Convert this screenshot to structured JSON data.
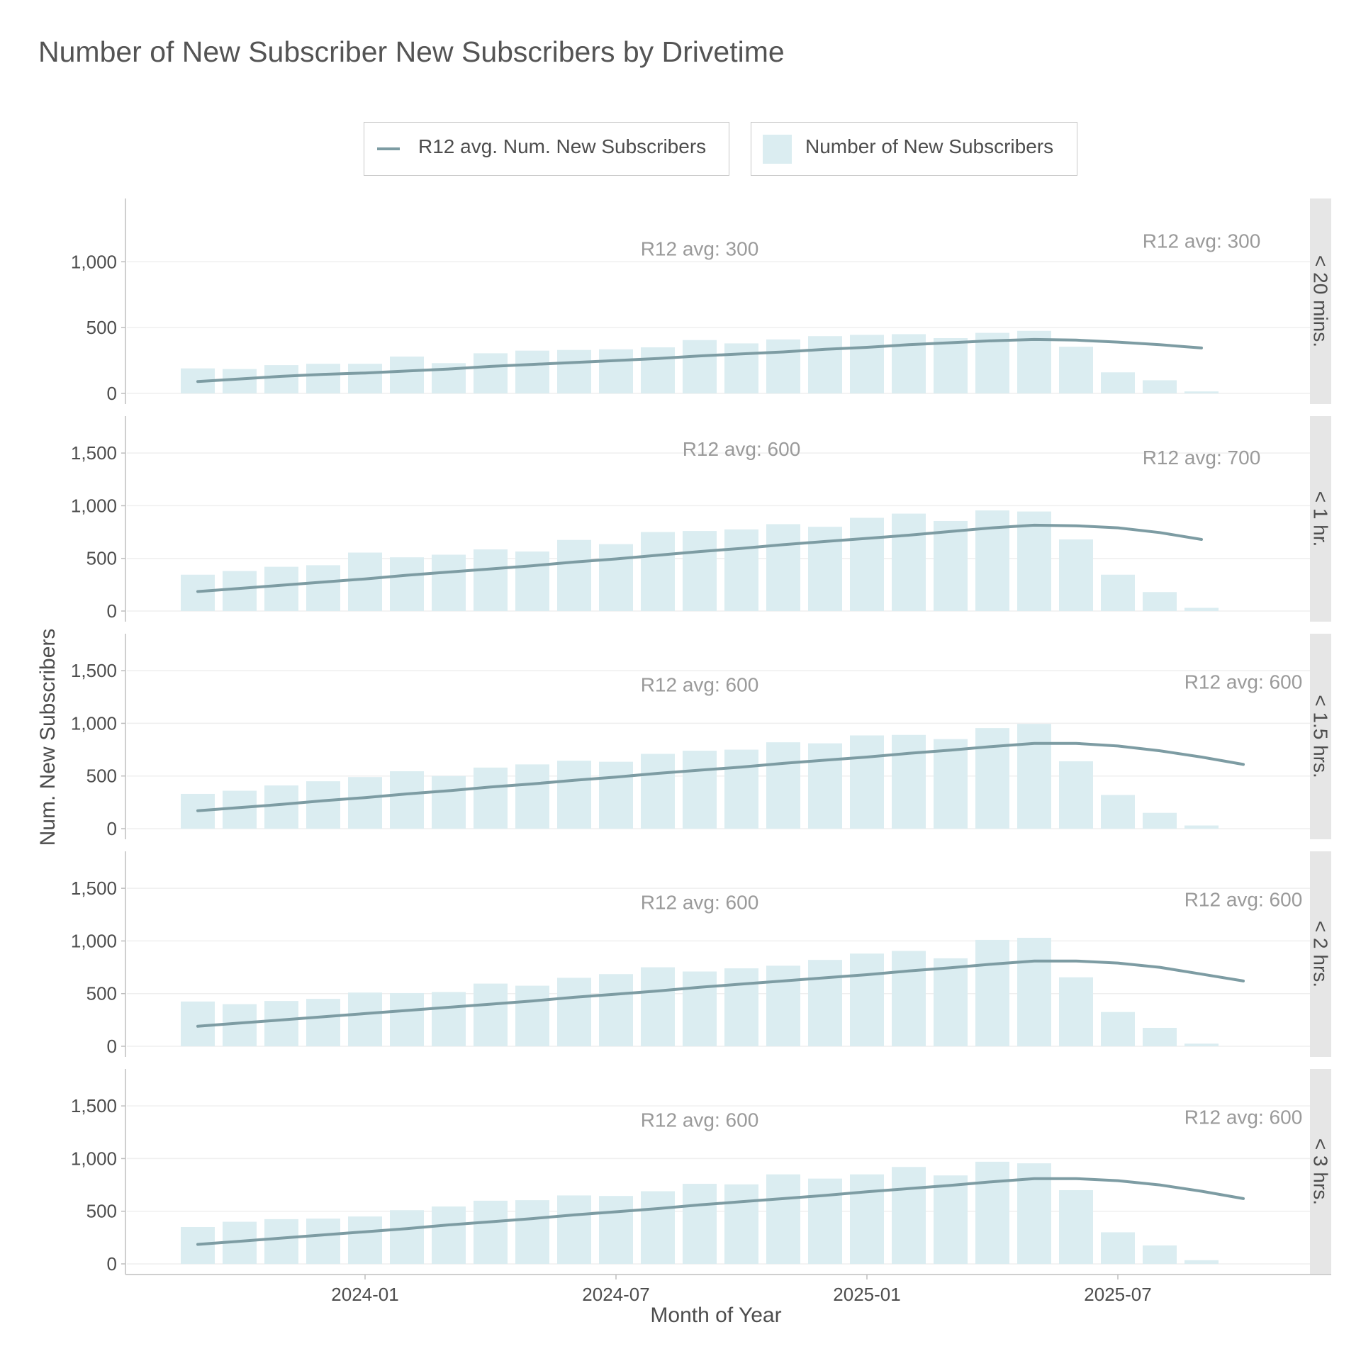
{
  "chart_data": {
    "type": "bar",
    "title": "Number of New Subscriber New Subscribers by Drivetime",
    "xlabel": "Month of Year",
    "ylabel": "Num. New Subscribers",
    "grid": true,
    "legend_placement": "top",
    "legend": [
      {
        "label": "R12 avg. Num. New Subscribers",
        "kind": "line",
        "color": "#7d9ca3"
      },
      {
        "label": "Number of New Subscribers",
        "kind": "bar",
        "color": "#dbedf1"
      }
    ],
    "colors": {
      "bar": "#dbedf1",
      "line": "#7d9ca3",
      "annotation": "#9a9a9a",
      "strip": "#e6e6e6"
    },
    "x_start_month": "2023-09",
    "bar_months": [
      "2023-09",
      "2023-10",
      "2023-11",
      "2023-12",
      "2024-01",
      "2024-02",
      "2024-03",
      "2024-04",
      "2024-05",
      "2024-06",
      "2024-07",
      "2024-08",
      "2024-09",
      "2024-10",
      "2024-11",
      "2024-12",
      "2025-01",
      "2025-02",
      "2025-03",
      "2025-04",
      "2025-05",
      "2025-06",
      "2025-07",
      "2025-08",
      "2025-09"
    ],
    "x_ticks": [
      "2024-01",
      "2024-07",
      "2025-01",
      "2025-07"
    ],
    "panels": [
      {
        "strip_label": "< 20 mins.",
        "ylim": [
          0,
          1400
        ],
        "yticks": [
          0,
          500,
          1000
        ],
        "ytick_labels": [
          "0",
          "500",
          "1,000"
        ],
        "values": [
          190,
          185,
          215,
          225,
          225,
          280,
          230,
          305,
          325,
          330,
          335,
          350,
          405,
          380,
          410,
          435,
          445,
          450,
          420,
          460,
          475,
          355,
          160,
          100,
          15
        ],
        "r12_line": {
          "x": [
            "2023-09",
            "2023-10",
            "2023-11",
            "2023-12",
            "2024-01",
            "2024-02",
            "2024-03",
            "2024-04",
            "2024-05",
            "2024-06",
            "2024-07",
            "2024-08",
            "2024-09",
            "2024-10",
            "2024-11",
            "2024-12",
            "2025-01",
            "2025-02",
            "2025-03",
            "2025-04",
            "2025-05",
            "2025-06",
            "2025-07",
            "2025-08",
            "2025-09"
          ],
          "y": [
            90,
            110,
            130,
            145,
            155,
            170,
            185,
            205,
            220,
            235,
            250,
            265,
            285,
            300,
            315,
            335,
            350,
            370,
            385,
            400,
            410,
            405,
            390,
            370,
            345
          ]
        },
        "annotations": [
          {
            "text": "R12 avg: 300",
            "x": "2024-09",
            "y": 1100
          },
          {
            "text": "R12 avg: 300",
            "x": "2025-09",
            "y": 1160
          }
        ]
      },
      {
        "strip_label": "< 1 hr.",
        "ylim": [
          0,
          1750
        ],
        "yticks": [
          0,
          500,
          1000,
          1500
        ],
        "ytick_labels": [
          "0",
          "500",
          "1,000",
          "1,500"
        ],
        "values": [
          345,
          380,
          420,
          435,
          555,
          510,
          535,
          585,
          565,
          675,
          635,
          750,
          760,
          775,
          825,
          800,
          885,
          925,
          855,
          955,
          945,
          680,
          345,
          180,
          30
        ],
        "r12_line": {
          "x": [
            "2023-09",
            "2023-10",
            "2023-11",
            "2023-12",
            "2024-01",
            "2024-02",
            "2024-03",
            "2024-04",
            "2024-05",
            "2024-06",
            "2024-07",
            "2024-08",
            "2024-09",
            "2024-10",
            "2024-11",
            "2024-12",
            "2025-01",
            "2025-02",
            "2025-03",
            "2025-04",
            "2025-05",
            "2025-06",
            "2025-07",
            "2025-08",
            "2025-09"
          ],
          "y": [
            185,
            215,
            245,
            275,
            305,
            340,
            370,
            400,
            430,
            465,
            495,
            530,
            565,
            595,
            630,
            660,
            690,
            720,
            755,
            790,
            815,
            810,
            790,
            745,
            680
          ]
        },
        "annotations": [
          {
            "text": "R12 avg: 600",
            "x": "2024-10",
            "y": 1540
          },
          {
            "text": "R12 avg: 700",
            "x": "2025-09",
            "y": 1460
          }
        ]
      },
      {
        "strip_label": "< 1.5 hrs.",
        "ylim": [
          0,
          1750
        ],
        "yticks": [
          0,
          500,
          1000,
          1500
        ],
        "ytick_labels": [
          "0",
          "500",
          "1,000",
          "1,500"
        ],
        "values": [
          330,
          360,
          410,
          450,
          490,
          545,
          500,
          580,
          610,
          645,
          635,
          710,
          740,
          750,
          820,
          810,
          885,
          890,
          850,
          955,
          995,
          640,
          320,
          150,
          30
        ],
        "r12_line": {
          "x": [
            "2023-09",
            "2023-10",
            "2023-11",
            "2023-12",
            "2024-01",
            "2024-02",
            "2024-03",
            "2024-04",
            "2024-05",
            "2024-06",
            "2024-07",
            "2024-08",
            "2024-09",
            "2024-10",
            "2024-11",
            "2024-12",
            "2025-01",
            "2025-02",
            "2025-03",
            "2025-04",
            "2025-05",
            "2025-06",
            "2025-07",
            "2025-08",
            "2025-09",
            "2025-10"
          ],
          "y": [
            170,
            200,
            230,
            265,
            295,
            330,
            360,
            395,
            425,
            460,
            490,
            525,
            555,
            585,
            620,
            650,
            680,
            715,
            745,
            780,
            810,
            810,
            785,
            740,
            680,
            610
          ]
        },
        "annotations": [
          {
            "text": "R12 avg: 600",
            "x": "2024-09",
            "y": 1370
          },
          {
            "text": "R12 avg: 600",
            "x": "2025-10",
            "y": 1395
          }
        ]
      },
      {
        "strip_label": "< 2 hrs.",
        "ylim": [
          0,
          1750
        ],
        "yticks": [
          0,
          500,
          1000,
          1500
        ],
        "ytick_labels": [
          "0",
          "500",
          "1,000",
          "1,500"
        ],
        "values": [
          425,
          400,
          430,
          450,
          510,
          505,
          515,
          595,
          575,
          650,
          685,
          750,
          710,
          740,
          765,
          820,
          880,
          905,
          835,
          1010,
          1030,
          655,
          325,
          175,
          25
        ],
        "r12_line": {
          "x": [
            "2023-09",
            "2023-10",
            "2023-11",
            "2023-12",
            "2024-01",
            "2024-02",
            "2024-03",
            "2024-04",
            "2024-05",
            "2024-06",
            "2024-07",
            "2024-08",
            "2024-09",
            "2024-10",
            "2024-11",
            "2024-12",
            "2025-01",
            "2025-02",
            "2025-03",
            "2025-04",
            "2025-05",
            "2025-06",
            "2025-07",
            "2025-08",
            "2025-09",
            "2025-10"
          ],
          "y": [
            190,
            220,
            250,
            280,
            310,
            340,
            370,
            400,
            430,
            465,
            495,
            525,
            560,
            590,
            620,
            650,
            680,
            715,
            745,
            780,
            810,
            810,
            790,
            750,
            685,
            620
          ]
        },
        "annotations": [
          {
            "text": "R12 avg: 600",
            "x": "2024-09",
            "y": 1370
          },
          {
            "text": "R12 avg: 600",
            "x": "2025-10",
            "y": 1395
          }
        ]
      },
      {
        "strip_label": "< 3 hrs.",
        "ylim": [
          0,
          1750
        ],
        "yticks": [
          0,
          500,
          1000,
          1500
        ],
        "ytick_labels": [
          "0",
          "500",
          "1,000",
          "1,500"
        ],
        "values": [
          350,
          400,
          425,
          430,
          450,
          510,
          545,
          600,
          605,
          650,
          645,
          690,
          760,
          755,
          850,
          810,
          850,
          920,
          840,
          970,
          955,
          700,
          300,
          175,
          35
        ],
        "r12_line": {
          "x": [
            "2023-09",
            "2023-10",
            "2023-11",
            "2023-12",
            "2024-01",
            "2024-02",
            "2024-03",
            "2024-04",
            "2024-05",
            "2024-06",
            "2024-07",
            "2024-08",
            "2024-09",
            "2024-10",
            "2024-11",
            "2024-12",
            "2025-01",
            "2025-02",
            "2025-03",
            "2025-04",
            "2025-05",
            "2025-06",
            "2025-07",
            "2025-08",
            "2025-09",
            "2025-10"
          ],
          "y": [
            185,
            215,
            245,
            275,
            305,
            335,
            370,
            400,
            430,
            465,
            495,
            525,
            560,
            590,
            620,
            650,
            685,
            715,
            745,
            780,
            810,
            810,
            790,
            750,
            690,
            620
          ]
        },
        "annotations": [
          {
            "text": "R12 avg: 600",
            "x": "2024-09",
            "y": 1370
          },
          {
            "text": "R12 avg: 600",
            "x": "2025-10",
            "y": 1395
          }
        ]
      }
    ]
  }
}
